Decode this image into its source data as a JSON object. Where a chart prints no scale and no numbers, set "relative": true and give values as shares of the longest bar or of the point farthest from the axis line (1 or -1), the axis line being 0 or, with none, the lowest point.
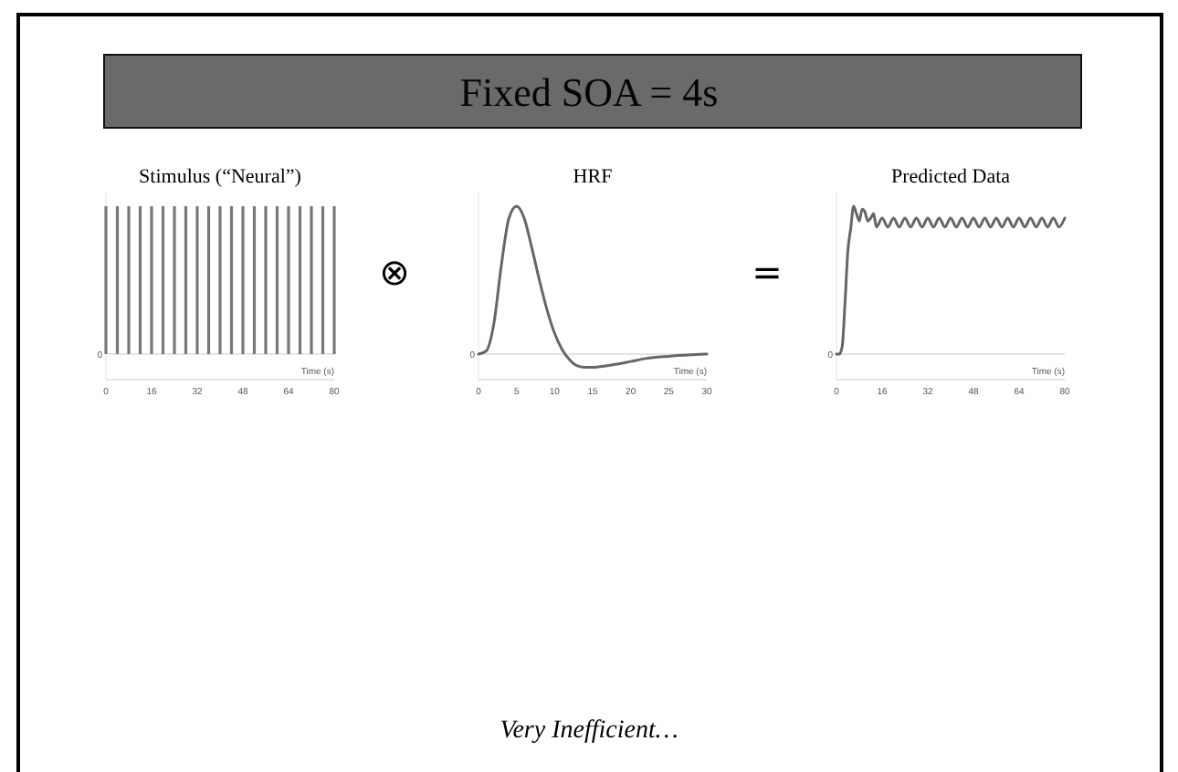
{
  "chart_data": [
    {
      "type": "bar",
      "title": "Stimulus (“Neural”)",
      "xlabel": "Time (s)",
      "relative": true,
      "xlim": [
        0,
        80
      ],
      "xticks": [
        0,
        16,
        32,
        48,
        64,
        80
      ],
      "x": [
        0,
        4,
        8,
        12,
        16,
        20,
        24,
        28,
        32,
        36,
        40,
        44,
        48,
        52,
        56,
        60,
        64,
        68,
        72,
        76,
        80
      ],
      "values": [
        1,
        1,
        1,
        1,
        1,
        1,
        1,
        1,
        1,
        1,
        1,
        1,
        1,
        1,
        1,
        1,
        1,
        1,
        1,
        1,
        1
      ],
      "color": "#777777",
      "annotations": [
        "Fixed SOA = 4s",
        "0",
        "⊗"
      ]
    },
    {
      "type": "line",
      "title": "HRF",
      "xlabel": "Time (s)",
      "relative": true,
      "xlim": [
        0,
        30
      ],
      "xticks": [
        0,
        5,
        10,
        15,
        20,
        25,
        30
      ],
      "x": [
        0,
        1,
        2,
        3,
        4,
        5,
        6,
        7,
        8,
        9,
        10,
        11,
        12,
        13,
        14,
        15,
        16,
        18,
        20,
        22,
        25,
        28,
        30
      ],
      "values": [
        0,
        0.02,
        0.2,
        0.6,
        0.92,
        1,
        0.92,
        0.72,
        0.5,
        0.3,
        0.14,
        0.03,
        -0.04,
        -0.08,
        -0.09,
        -0.09,
        -0.085,
        -0.07,
        -0.05,
        -0.03,
        -0.015,
        -0.005,
        0
      ],
      "color": "#666666",
      "annotations": [
        "0",
        "="
      ]
    },
    {
      "type": "line",
      "title": "Predicted Data",
      "xlabel": "Time (s)",
      "relative": true,
      "xlim": [
        0,
        80
      ],
      "xticks": [
        0,
        16,
        32,
        48,
        64,
        80
      ],
      "x": [
        0,
        1,
        2,
        3,
        4,
        5,
        6,
        7,
        8,
        9,
        10,
        11,
        12,
        13,
        14,
        16,
        18,
        20,
        22,
        24,
        26,
        28,
        30,
        32,
        34,
        36,
        38,
        40,
        42,
        44,
        46,
        48,
        50,
        52,
        54,
        56,
        58,
        60,
        62,
        64,
        66,
        68,
        70,
        72,
        74,
        76,
        78,
        80
      ],
      "values": [
        0,
        0,
        0.05,
        0.35,
        0.7,
        0.85,
        1,
        0.95,
        0.9,
        0.98,
        0.96,
        0.9,
        0.92,
        0.95,
        0.86,
        0.92,
        0.86,
        0.92,
        0.86,
        0.92,
        0.86,
        0.92,
        0.86,
        0.92,
        0.86,
        0.92,
        0.86,
        0.92,
        0.86,
        0.92,
        0.86,
        0.92,
        0.86,
        0.92,
        0.86,
        0.92,
        0.86,
        0.92,
        0.86,
        0.92,
        0.86,
        0.92,
        0.86,
        0.92,
        0.86,
        0.92,
        0.86,
        0.92
      ],
      "color": "#666666",
      "annotations": [
        "0",
        "Very Inefficient…"
      ]
    }
  ]
}
